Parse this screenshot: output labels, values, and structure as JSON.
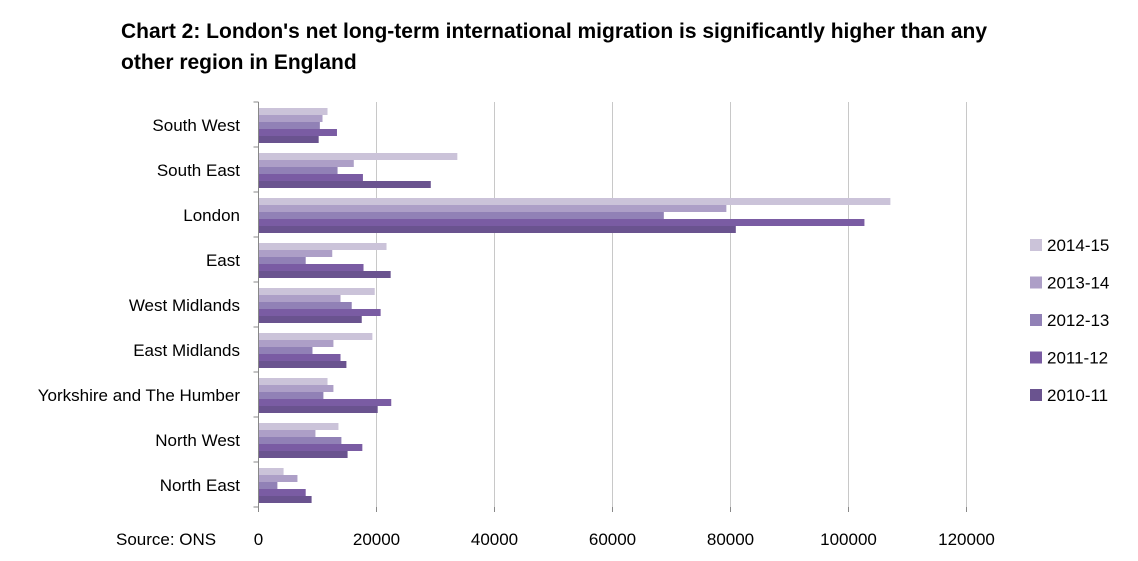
{
  "chart_data": {
    "type": "bar",
    "orientation": "horizontal",
    "title": "Chart 2: London's net long-term international migration is significantly higher than any other region in England",
    "source": "Source: ONS",
    "categories": [
      "South West",
      "South East",
      "London",
      "East",
      "West Midlands",
      "East Midlands",
      "Yorkshire and The Humber",
      "North West",
      "North East"
    ],
    "series": [
      {
        "name": "2014-15",
        "color": "#cbc3d9",
        "values": [
          11700,
          33700,
          107100,
          21700,
          19700,
          19300,
          11700,
          13550,
          4250
        ]
      },
      {
        "name": "2013-14",
        "color": "#ad9fc7",
        "values": [
          10850,
          16150,
          79300,
          12500,
          13900,
          12700,
          12700,
          9650,
          6600
        ]
      },
      {
        "name": "2012-13",
        "color": "#9181b6",
        "values": [
          10400,
          13400,
          68700,
          8000,
          15800,
          9150,
          11000,
          14050,
          3200
        ]
      },
      {
        "name": "2011-12",
        "color": "#7a5ca3",
        "values": [
          13300,
          17700,
          102700,
          17800,
          20700,
          13900,
          22500,
          17600,
          8000
        ]
      },
      {
        "name": "2010-11",
        "color": "#6a538f",
        "values": [
          10200,
          29200,
          80900,
          22400,
          17500,
          14900,
          20200,
          15100,
          9000
        ]
      }
    ],
    "xlim": [
      0,
      120000
    ],
    "xticks": [
      "0",
      "20000",
      "40000",
      "60000",
      "80000",
      "100000",
      "120000"
    ],
    "grid": true,
    "legend": "right"
  }
}
